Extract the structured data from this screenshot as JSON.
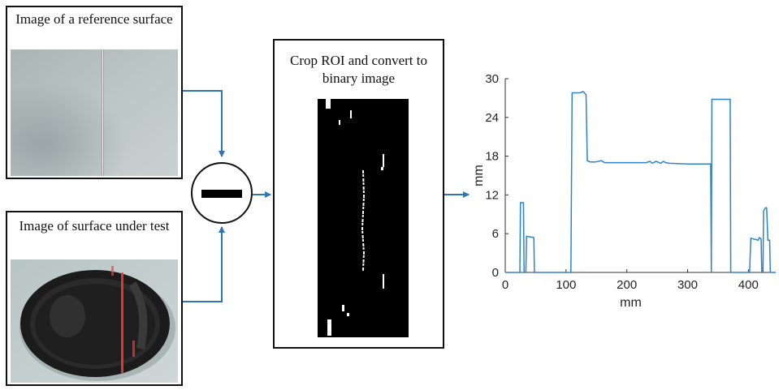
{
  "reference_panel": {
    "title": "Image of a reference surface"
  },
  "test_panel": {
    "title": "Image of surface under test"
  },
  "operator": {
    "symbol": "minus"
  },
  "roi_panel": {
    "title": "Crop ROI and convert to binary image"
  },
  "colors": {
    "arrow": "#2e75b6",
    "line": "#2e83c8",
    "laser": "#ff4d4d"
  },
  "chart_data": {
    "type": "line",
    "xlabel": "mm",
    "ylabel": "mm",
    "xlim": [
      0,
      445
    ],
    "ylim": [
      0,
      30
    ],
    "xticks": [
      0,
      100,
      200,
      300,
      400
    ],
    "yticks": [
      0,
      6,
      12,
      18,
      24,
      30
    ],
    "grid": false,
    "series": [
      {
        "x": [
          0,
          24,
          25,
          30,
          31,
          34,
          35,
          47,
          48,
          108,
          110,
          123,
          128,
          133,
          135,
          140,
          148,
          158,
          164,
          170,
          200,
          232,
          238,
          242,
          248,
          256,
          260,
          264,
          270,
          300,
          338,
          339,
          340,
          341,
          370,
          371,
          400,
          402,
          404,
          416,
          418,
          421,
          422,
          424,
          425,
          428,
          430,
          432,
          435,
          436,
          445
        ],
        "y": [
          0,
          0,
          10.8,
          10.8,
          0,
          0,
          5.6,
          5.4,
          0,
          0,
          27.8,
          27.8,
          28,
          27.5,
          17.3,
          17.1,
          17.1,
          17.3,
          17,
          17,
          17,
          17,
          17.2,
          16.9,
          17.2,
          16.9,
          17.2,
          17,
          16.9,
          16.8,
          16.8,
          0,
          26.8,
          26.8,
          26.8,
          0,
          0,
          0,
          5.3,
          5,
          5.4,
          5.2,
          0,
          0,
          9.5,
          10,
          10,
          5,
          5,
          0,
          0
        ]
      }
    ]
  }
}
